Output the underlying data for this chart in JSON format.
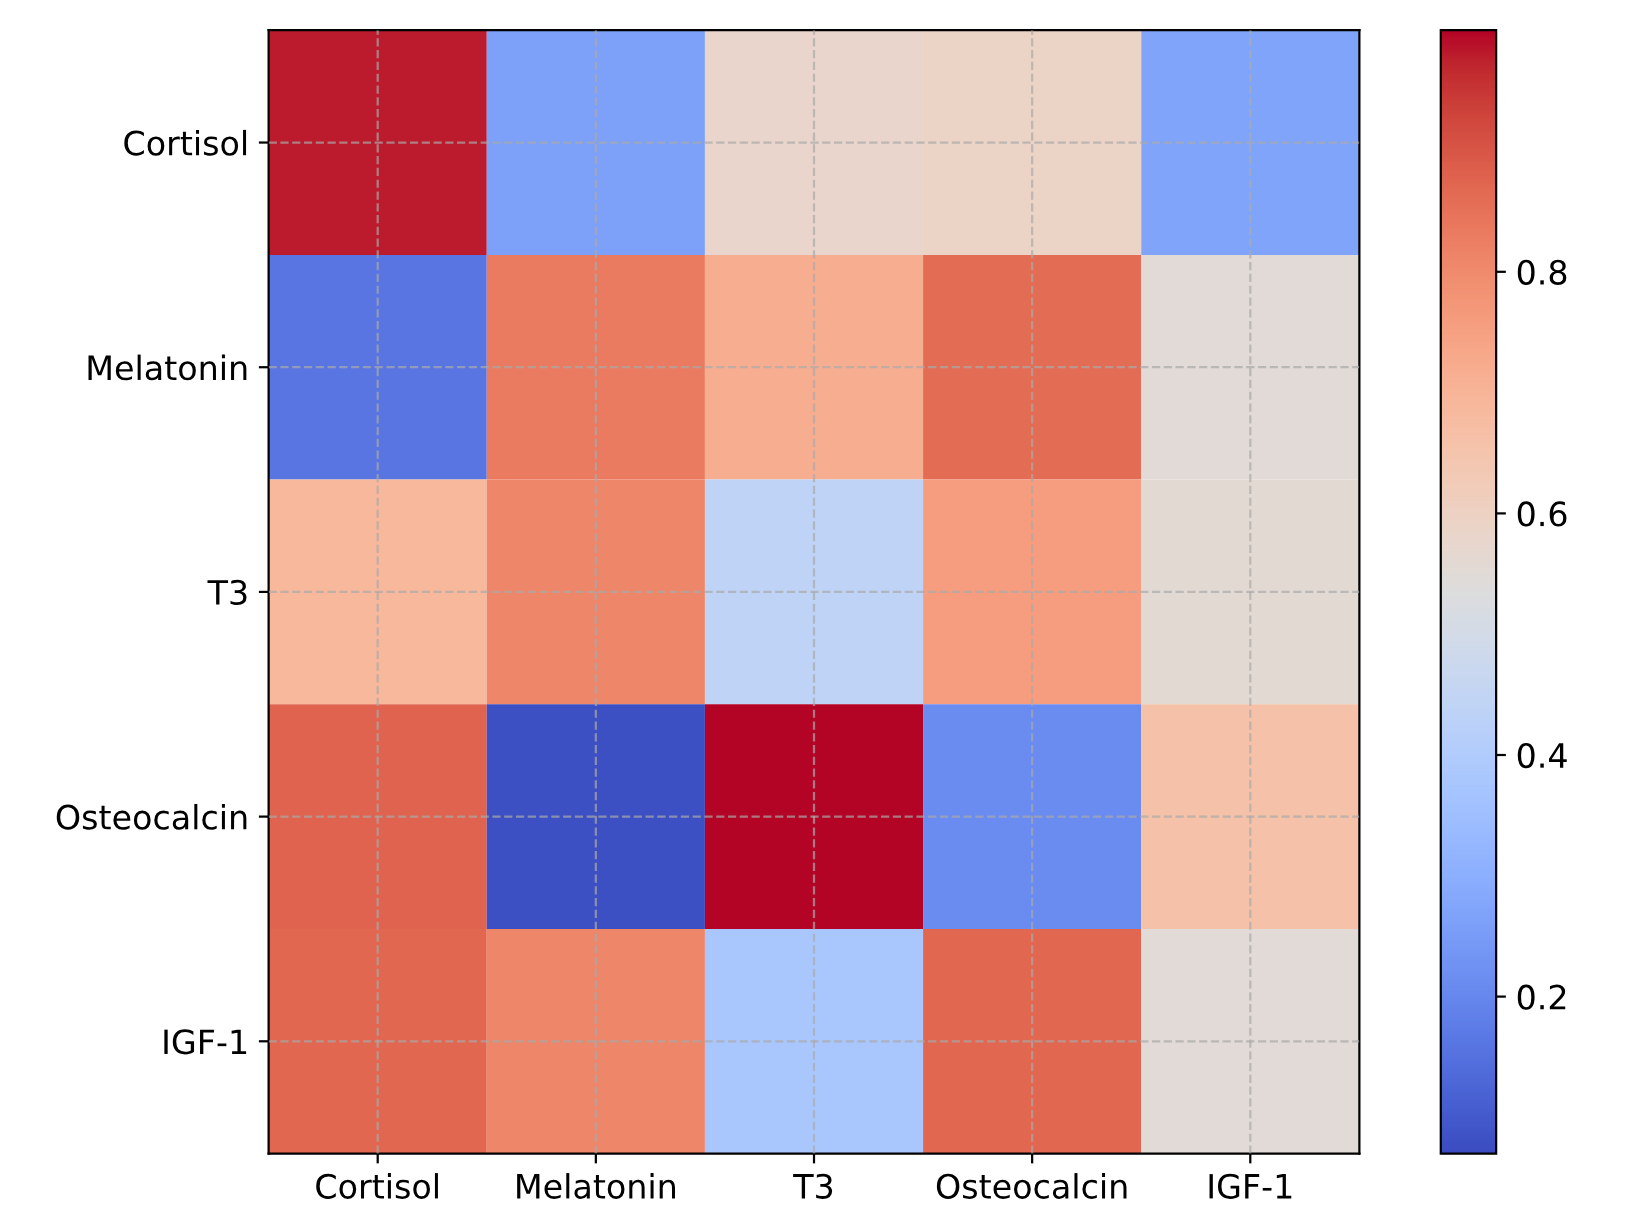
{
  "chart_data": {
    "type": "heatmap",
    "categories": [
      "Cortisol",
      "Melatonin",
      "T3",
      "Osteocalcin",
      "IGF-1"
    ],
    "y_categories": [
      "Cortisol",
      "Melatonin",
      "T3",
      "Osteocalcin",
      "IGF-1"
    ],
    "cells": [
      [
        0.98,
        0.26,
        0.58,
        0.59,
        0.27
      ],
      [
        0.16,
        0.83,
        0.72,
        0.86,
        0.55
      ],
      [
        0.69,
        0.81,
        0.44,
        0.76,
        0.56
      ],
      [
        0.88,
        0.08,
        1.0,
        0.21,
        0.66
      ],
      [
        0.87,
        0.81,
        0.38,
        0.87,
        0.55
      ]
    ],
    "clim": [
      0.07,
      1.0
    ],
    "cticks": [
      0.2,
      0.4,
      0.6,
      0.8
    ],
    "grid": true
  }
}
